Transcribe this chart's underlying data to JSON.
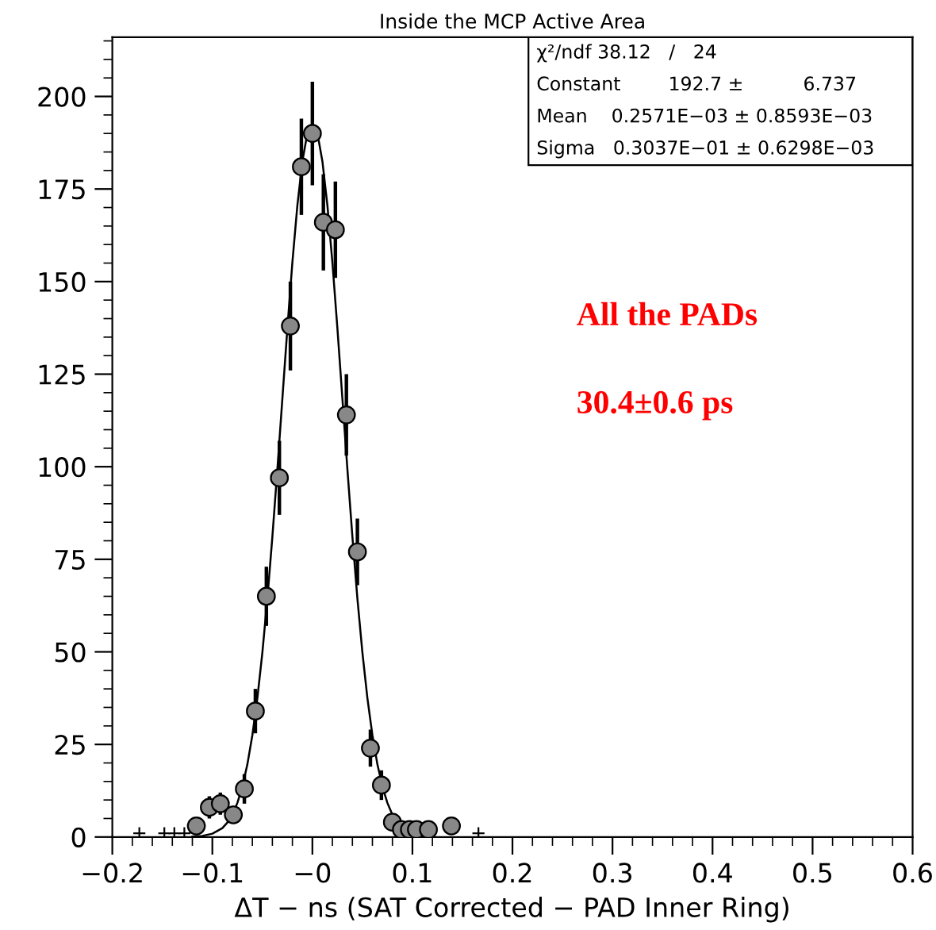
{
  "chart_data": {
    "type": "scatter",
    "title": "Inside the MCP Active Area",
    "xlabel": "ΔT − ns (SAT Corrected − PAD Inner Ring)",
    "xlim": [
      -0.2,
      0.6
    ],
    "ylim": [
      0,
      216
    ],
    "xticks": [
      {
        "value": -0.2,
        "label": "−0.2"
      },
      {
        "value": -0.1,
        "label": "−0.1"
      },
      {
        "value": 0,
        "label": "−0"
      },
      0.1,
      0.2,
      0.3,
      0.4,
      0.5,
      0.6
    ],
    "yticks": [
      0,
      25,
      50,
      75,
      100,
      125,
      150,
      175,
      200
    ],
    "annotations": [
      "χ²/ndf 38.12   /   24",
      "Constant        192.7 ±          6.737",
      "Mean    0.2571E−03 ± 0.8593E−03",
      "Sigma   0.3037E−01 ± 0.6298E−03",
      "All the PADs",
      "30.4±0.6 ps"
    ],
    "series": [
      {
        "marker": "circle",
        "color": "#888888",
        "x": [
          -0.116,
          -0.103,
          -0.092,
          -0.079,
          -0.068,
          -0.057,
          -0.046,
          -0.033,
          -0.022,
          -0.011,
          0.0,
          0.011,
          0.023,
          0.034,
          0.045,
          0.058,
          0.069,
          0.08,
          0.089,
          0.097,
          0.104,
          0.116,
          0.139
        ],
        "values": [
          3,
          8,
          9,
          6,
          13,
          34,
          65,
          97,
          138,
          181,
          190,
          166,
          164,
          114,
          77,
          24,
          14,
          4,
          2,
          2,
          2,
          2,
          3
        ],
        "errors": [
          2,
          3,
          3,
          2,
          4,
          6,
          8,
          10,
          12,
          13,
          14,
          13,
          13,
          11,
          9,
          5,
          4,
          2,
          1,
          1,
          1,
          1,
          2
        ]
      },
      {
        "type": "scatter",
        "marker": "cross",
        "color": "#000000",
        "x": [
          -0.173,
          -0.148,
          -0.138,
          -0.128,
          0.166
        ],
        "values": [
          1,
          1,
          1,
          1,
          1
        ]
      },
      {
        "type": "line",
        "color": "#000000",
        "x": [
          -0.12,
          -0.11,
          -0.1,
          -0.09,
          -0.085,
          -0.08,
          -0.075,
          -0.07,
          -0.065,
          -0.06,
          -0.055,
          -0.05,
          -0.045,
          -0.04,
          -0.035,
          -0.03,
          -0.025,
          -0.02,
          -0.015,
          -0.01,
          -0.005,
          0.0,
          0.005,
          0.01,
          0.015,
          0.02,
          0.025,
          0.03,
          0.035,
          0.04,
          0.045,
          0.05,
          0.055,
          0.06,
          0.065,
          0.07,
          0.075,
          0.08,
          0.085,
          0.09,
          0.1,
          0.11,
          0.12
        ],
        "values": [
          0.1,
          0.3,
          0.9,
          2.4,
          3.9,
          6.0,
          9.2,
          13.6,
          19.6,
          27.5,
          37.5,
          49.8,
          64.4,
          81.1,
          99.3,
          118.4,
          137.4,
          155.2,
          170.6,
          182.5,
          190.1,
          192.7,
          190.1,
          182.5,
          170.6,
          155.2,
          137.4,
          118.4,
          99.3,
          81.1,
          64.4,
          49.8,
          37.5,
          27.5,
          19.6,
          13.6,
          9.2,
          6.0,
          3.9,
          2.4,
          0.9,
          0.3,
          0.1
        ]
      }
    ]
  }
}
